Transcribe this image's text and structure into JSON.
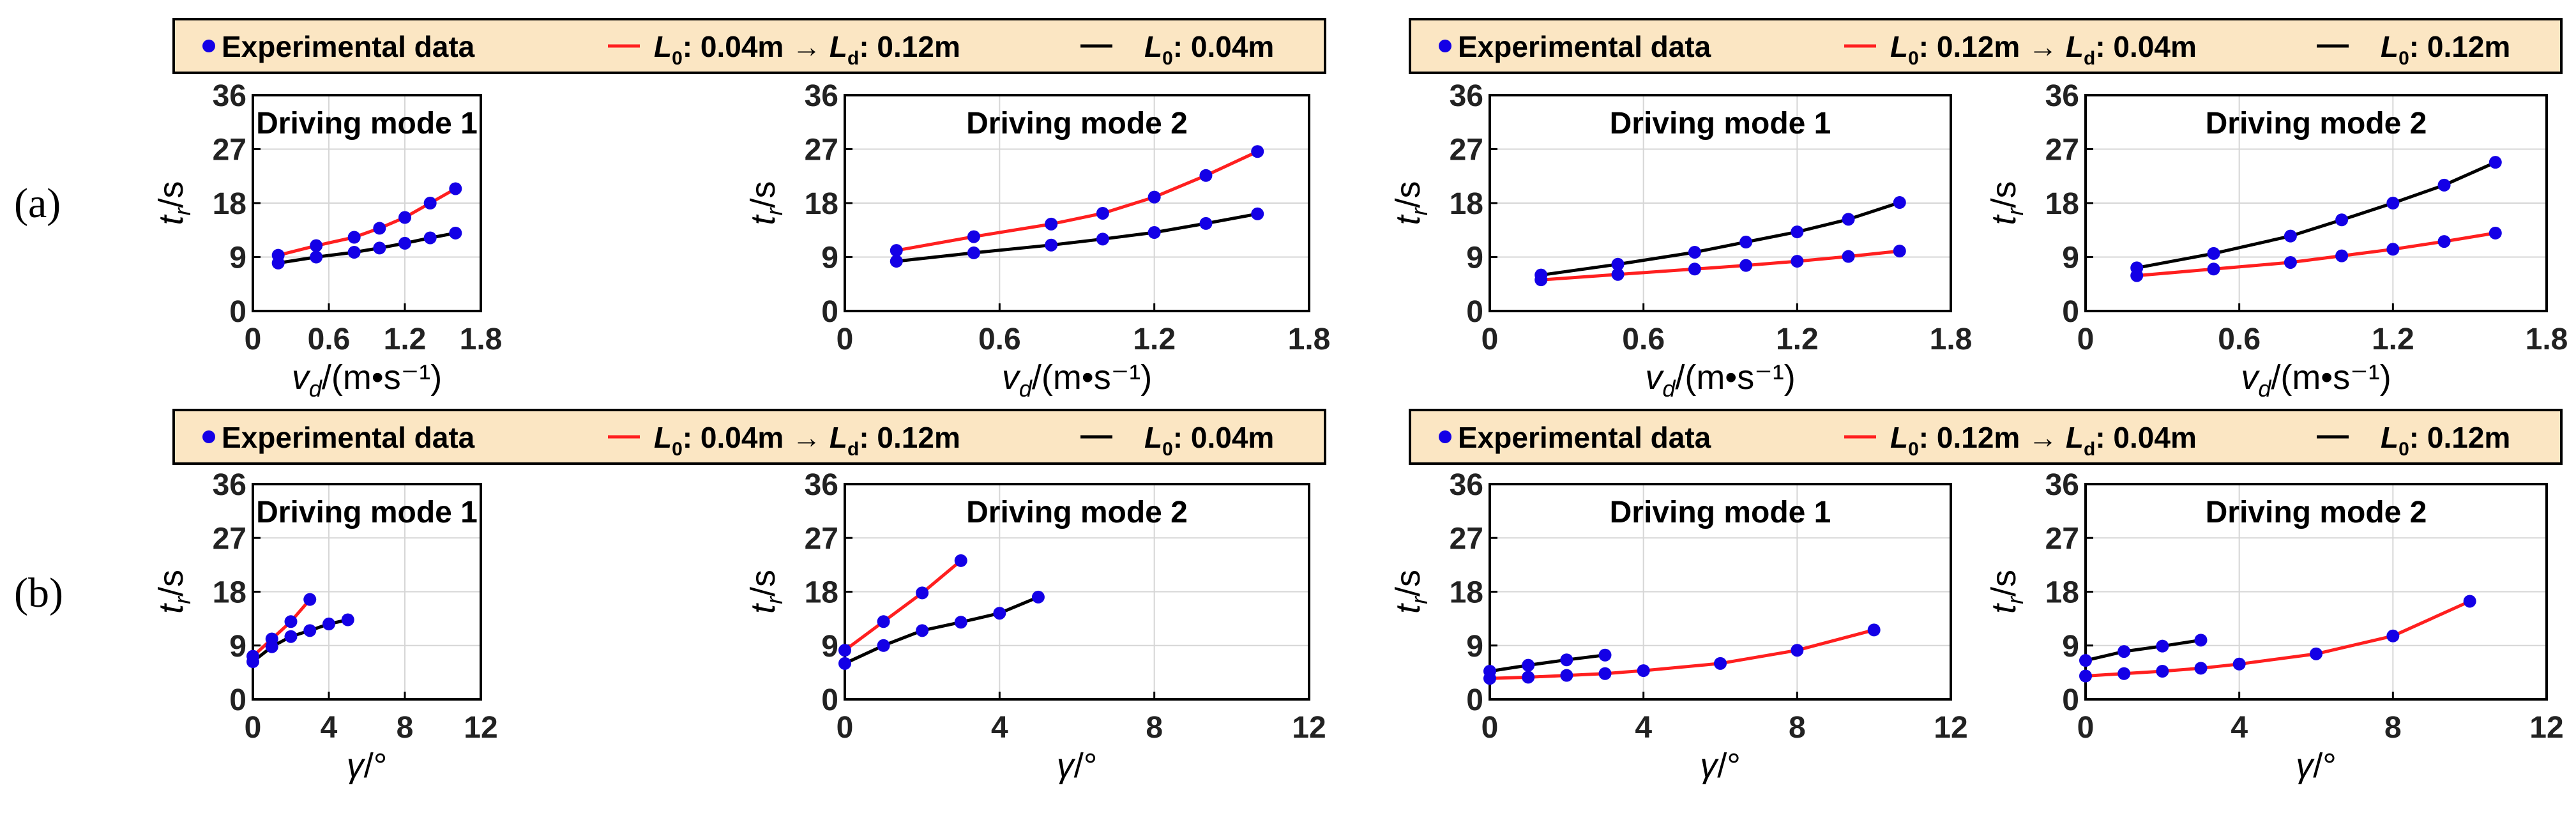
{
  "colors": {
    "experimental": "#1400e6",
    "transition": "#ff1f1f",
    "constant": "#000000",
    "legend_bg": "#fbe6c3",
    "grid": "#d6d6d6"
  },
  "row_labels": [
    "(a)",
    "(b)"
  ],
  "legends": [
    {
      "experimental": "Experimental data",
      "transition": {
        "L0": "0.04m",
        "arrow": "→",
        "Ld": "0.12m"
      },
      "constant": {
        "L0": "0.04m"
      }
    },
    {
      "experimental": "Experimental data",
      "transition": {
        "L0": "0.12m",
        "arrow": "→",
        "Ld": "0.04m"
      },
      "constant": {
        "L0": "0.12m"
      }
    },
    {
      "experimental": "Experimental data",
      "transition": {
        "L0": "0.04m",
        "arrow": "→",
        "Ld": "0.12m"
      },
      "constant": {
        "L0": "0.04m"
      }
    },
    {
      "experimental": "Experimental data",
      "transition": {
        "L0": "0.12m",
        "arrow": "→",
        "Ld": "0.04m"
      },
      "constant": {
        "L0": "0.12m"
      }
    }
  ],
  "chart_data": [
    {
      "type": "line",
      "title": "Driving mode 1",
      "xlabel": {
        "sym": "v",
        "sub": "d",
        "unit": "/(m•s⁻¹)"
      },
      "ylabel": {
        "sym": "t",
        "sub": "r",
        "unit": "/s"
      },
      "xticks": [
        "0",
        "0.6",
        "1.2",
        "1.8"
      ],
      "yticks": [
        "0",
        "9",
        "18",
        "27",
        "36"
      ],
      "xlim": [
        0,
        1.8
      ],
      "ylim": [
        0,
        36
      ],
      "grid": true,
      "series": [
        {
          "role": "transition",
          "x": [
            0.2,
            0.5,
            0.8,
            1.0,
            1.2,
            1.4,
            1.6
          ],
          "y": [
            9.3,
            10.9,
            12.3,
            13.8,
            15.6,
            18.0,
            20.4
          ]
        },
        {
          "role": "constant",
          "x": [
            0.2,
            0.5,
            0.8,
            1.0,
            1.2,
            1.4,
            1.6
          ],
          "y": [
            8.0,
            9.0,
            9.8,
            10.5,
            11.3,
            12.2,
            13.0
          ]
        }
      ]
    },
    {
      "type": "line",
      "title": "Driving mode 2",
      "xlabel": {
        "sym": "v",
        "sub": "d",
        "unit": "/(m•s⁻¹)"
      },
      "ylabel": {
        "sym": "t",
        "sub": "r",
        "unit": "/s"
      },
      "xticks": [
        "0",
        "0.6",
        "1.2",
        "1.8"
      ],
      "yticks": [
        "0",
        "9",
        "18",
        "27",
        "36"
      ],
      "xlim": [
        0,
        1.8
      ],
      "ylim": [
        0,
        36
      ],
      "grid": true,
      "series": [
        {
          "role": "transition",
          "x": [
            0.2,
            0.5,
            0.8,
            1.0,
            1.2,
            1.4,
            1.6
          ],
          "y": [
            10.1,
            12.4,
            14.5,
            16.3,
            19.0,
            22.6,
            26.6
          ]
        },
        {
          "role": "constant",
          "x": [
            0.2,
            0.5,
            0.8,
            1.0,
            1.2,
            1.4,
            1.6
          ],
          "y": [
            8.3,
            9.7,
            11.0,
            12.0,
            13.1,
            14.6,
            16.2
          ]
        }
      ]
    },
    {
      "type": "line",
      "title": "Driving mode 1",
      "xlabel": {
        "sym": "v",
        "sub": "d",
        "unit": "/(m•s⁻¹)"
      },
      "ylabel": {
        "sym": "t",
        "sub": "r",
        "unit": "/s"
      },
      "xticks": [
        "0",
        "0.6",
        "1.2",
        "1.8"
      ],
      "yticks": [
        "0",
        "9",
        "18",
        "27",
        "36"
      ],
      "xlim": [
        0,
        1.8
      ],
      "ylim": [
        0,
        36
      ],
      "grid": true,
      "series": [
        {
          "role": "transition",
          "x": [
            0.2,
            0.5,
            0.8,
            1.0,
            1.2,
            1.4,
            1.6
          ],
          "y": [
            5.2,
            6.1,
            7.0,
            7.6,
            8.3,
            9.1,
            10.0
          ]
        },
        {
          "role": "constant",
          "x": [
            0.2,
            0.5,
            0.8,
            1.0,
            1.2,
            1.4,
            1.6
          ],
          "y": [
            6.0,
            7.8,
            9.8,
            11.5,
            13.2,
            15.3,
            18.1
          ]
        }
      ]
    },
    {
      "type": "line",
      "title": "Driving mode 2",
      "xlabel": {
        "sym": "v",
        "sub": "d",
        "unit": "/(m•s⁻¹)"
      },
      "ylabel": {
        "sym": "t",
        "sub": "r",
        "unit": "/s"
      },
      "xticks": [
        "0",
        "0.6",
        "1.2",
        "1.8"
      ],
      "yticks": [
        "0",
        "9",
        "18",
        "27",
        "36"
      ],
      "xlim": [
        0,
        1.8
      ],
      "ylim": [
        0,
        36
      ],
      "grid": true,
      "series": [
        {
          "role": "transition",
          "x": [
            0.2,
            0.5,
            0.8,
            1.0,
            1.2,
            1.4,
            1.6
          ],
          "y": [
            5.9,
            7.0,
            8.1,
            9.2,
            10.3,
            11.6,
            13.0
          ]
        },
        {
          "role": "constant",
          "x": [
            0.2,
            0.5,
            0.8,
            1.0,
            1.2,
            1.4,
            1.6
          ],
          "y": [
            7.2,
            9.6,
            12.5,
            15.2,
            18.0,
            21.0,
            24.8
          ]
        }
      ]
    },
    {
      "type": "line",
      "title": "Driving mode 1",
      "xlabel": {
        "sym": "γ",
        "sub": "",
        "unit": "/°"
      },
      "ylabel": {
        "sym": "t",
        "sub": "r",
        "unit": "/s"
      },
      "xticks": [
        "0",
        "4",
        "8",
        "12"
      ],
      "yticks": [
        "0",
        "9",
        "18",
        "27",
        "36"
      ],
      "xlim": [
        0,
        12
      ],
      "ylim": [
        0,
        36
      ],
      "grid": true,
      "series": [
        {
          "role": "transition",
          "x": [
            0,
            1,
            2,
            3
          ],
          "y": [
            7.2,
            10.1,
            13.0,
            16.7
          ]
        },
        {
          "role": "constant",
          "x": [
            0,
            1,
            2,
            3,
            4,
            5
          ],
          "y": [
            6.3,
            8.8,
            10.5,
            11.5,
            12.6,
            13.3
          ]
        }
      ]
    },
    {
      "type": "line",
      "title": "Driving mode 2",
      "xlabel": {
        "sym": "γ",
        "sub": "",
        "unit": "/°"
      },
      "ylabel": {
        "sym": "t",
        "sub": "r",
        "unit": "/s"
      },
      "xticks": [
        "0",
        "4",
        "8",
        "12"
      ],
      "yticks": [
        "0",
        "9",
        "18",
        "27",
        "36"
      ],
      "xlim": [
        0,
        12
      ],
      "ylim": [
        0,
        36
      ],
      "grid": true,
      "series": [
        {
          "role": "transition",
          "x": [
            0,
            1,
            2,
            3
          ],
          "y": [
            8.2,
            13.0,
            17.8,
            23.2
          ]
        },
        {
          "role": "constant",
          "x": [
            0,
            1,
            2,
            3,
            4,
            5
          ],
          "y": [
            6.0,
            9.0,
            11.5,
            12.9,
            14.4,
            17.1
          ]
        }
      ]
    },
    {
      "type": "line",
      "title": "Driving mode 1",
      "xlabel": {
        "sym": "γ",
        "sub": "",
        "unit": "/°"
      },
      "ylabel": {
        "sym": "t",
        "sub": "r",
        "unit": "/s"
      },
      "xticks": [
        "0",
        "4",
        "8",
        "12"
      ],
      "yticks": [
        "0",
        "9",
        "18",
        "27",
        "36"
      ],
      "xlim": [
        0,
        12
      ],
      "ylim": [
        0,
        36
      ],
      "grid": true,
      "series": [
        {
          "role": "transition",
          "x": [
            0,
            1,
            2,
            3,
            4,
            6,
            8,
            10
          ],
          "y": [
            3.5,
            3.7,
            4.0,
            4.3,
            4.8,
            6.0,
            8.2,
            11.6
          ]
        },
        {
          "role": "constant",
          "x": [
            0,
            1,
            2,
            3
          ],
          "y": [
            4.7,
            5.7,
            6.6,
            7.4
          ]
        }
      ]
    },
    {
      "type": "line",
      "title": "Driving mode 2",
      "xlabel": {
        "sym": "γ",
        "sub": "",
        "unit": "/°"
      },
      "ylabel": {
        "sym": "t",
        "sub": "r",
        "unit": "/s"
      },
      "xticks": [
        "0",
        "4",
        "8",
        "12"
      ],
      "yticks": [
        "0",
        "9",
        "18",
        "27",
        "36"
      ],
      "xlim": [
        0,
        12
      ],
      "ylim": [
        0,
        36
      ],
      "grid": true,
      "series": [
        {
          "role": "transition",
          "x": [
            0,
            1,
            2,
            3,
            4,
            6,
            8,
            10
          ],
          "y": [
            3.9,
            4.3,
            4.7,
            5.2,
            5.9,
            7.6,
            10.6,
            16.4
          ]
        },
        {
          "role": "constant",
          "x": [
            0,
            1,
            2,
            3
          ],
          "y": [
            6.5,
            8.0,
            8.9,
            9.9
          ]
        }
      ]
    }
  ]
}
